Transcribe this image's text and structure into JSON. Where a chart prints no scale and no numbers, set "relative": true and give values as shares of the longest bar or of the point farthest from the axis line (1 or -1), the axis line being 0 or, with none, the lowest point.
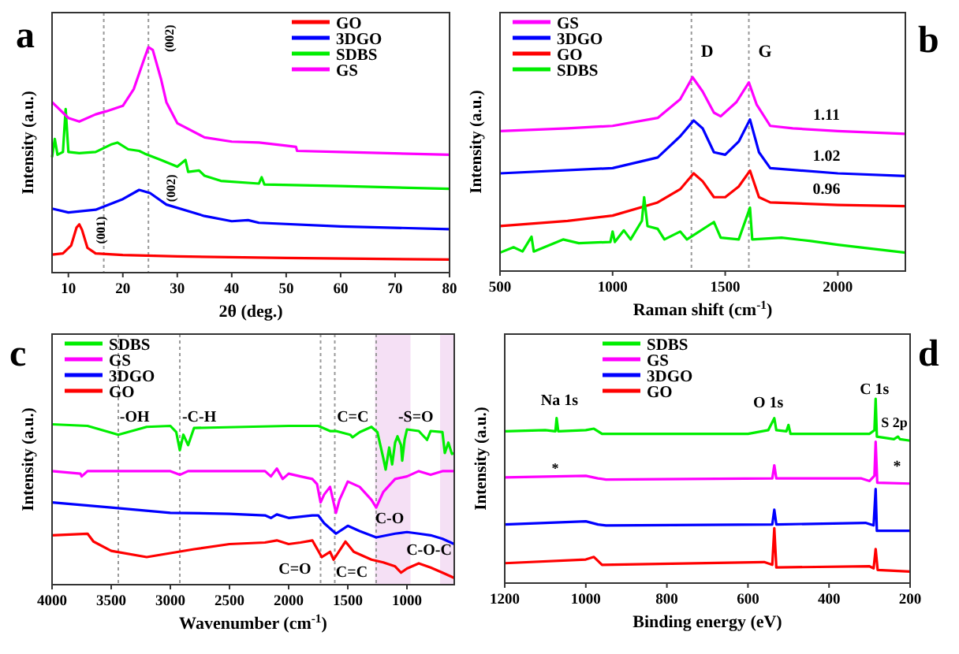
{
  "chart_data": [
    {
      "type": "line",
      "title": "a",
      "xlabel": "2θ (deg.)",
      "ylabel": "Intensity (a.u.)",
      "relative": true,
      "xlim": [
        7,
        80
      ],
      "xticks": [
        10,
        20,
        30,
        40,
        50,
        60,
        70,
        80
      ],
      "tick_labels": "x",
      "grid": false,
      "legend": "top right",
      "marker": "none",
      "line_style": "solid",
      "series": [
        {
          "name": "GO",
          "color": "#ff0000",
          "x": [
            7,
            9,
            10.5,
            11.5,
            12,
            12.5,
            13.5,
            15,
            20,
            30,
            50,
            80
          ],
          "values": [
            0.08,
            0.085,
            0.12,
            0.2,
            0.214,
            0.19,
            0.11,
            0.085,
            0.078,
            0.072,
            0.065,
            0.058
          ]
        },
        {
          "name": "3DGO",
          "color": "#0000ff",
          "x": [
            7,
            10,
            15,
            20,
            23,
            25,
            28,
            35,
            40,
            43,
            45,
            60,
            80
          ],
          "values": [
            0.284,
            0.267,
            0.279,
            0.326,
            0.367,
            0.353,
            0.302,
            0.251,
            0.228,
            0.233,
            0.221,
            0.205,
            0.193
          ]
        },
        {
          "name": "SDBS",
          "color": "#00ee00",
          "x": [
            7,
            7.5,
            8,
            9,
            9.5,
            10,
            12,
            15,
            18,
            19,
            21,
            23,
            24,
            27,
            30,
            31.5,
            32,
            34,
            35,
            38,
            45,
            45.5,
            46,
            60,
            80
          ],
          "values": [
            0.512,
            0.593,
            0.523,
            0.535,
            0.726,
            0.535,
            0.53,
            0.535,
            0.57,
            0.577,
            0.547,
            0.54,
            0.528,
            0.5,
            0.47,
            0.5,
            0.447,
            0.453,
            0.43,
            0.407,
            0.395,
            0.423,
            0.391,
            0.384,
            0.372
          ]
        },
        {
          "name": "GS",
          "color": "#ff00ff",
          "x": [
            7,
            10,
            12,
            15,
            17,
            20,
            22,
            24,
            24.7,
            25.5,
            27,
            28,
            30,
            35,
            40,
            45,
            50,
            51.8,
            52,
            60,
            80
          ],
          "values": [
            0.756,
            0.686,
            0.67,
            0.702,
            0.716,
            0.74,
            0.814,
            0.953,
            1,
            0.988,
            0.86,
            0.756,
            0.663,
            0.6,
            0.581,
            0.577,
            0.563,
            0.558,
            0.54,
            0.535,
            0.523
          ]
        }
      ],
      "ref_lines": [
        {
          "axis": "x",
          "value": 16.5,
          "color": "#999999",
          "line_style": "dotted"
        },
        {
          "axis": "x",
          "value": 24.7,
          "color": "#999999",
          "line_style": "dotted"
        }
      ],
      "annotations": [
        "(002)",
        {
          "text": "(002)",
          "x": 28.7,
          "y": 0.314
        },
        {
          "text": "(001)",
          "x": 15.8,
          "y": 0.128
        }
      ]
    },
    {
      "type": "line",
      "title": "b",
      "xlabel": "Raman shift (cm$^{-1}$)",
      "ylabel": "Intensity (a.u.)",
      "relative": true,
      "xlim": [
        500,
        2300
      ],
      "xticks": [
        500,
        1000,
        1500,
        2000
      ],
      "tick_labels": "x",
      "grid": false,
      "legend": "top left",
      "marker": "none",
      "line_style": "solid",
      "series": [
        {
          "name": "GS",
          "color": "#ff00ff",
          "x": [
            500,
            800,
            1000,
            1200,
            1300,
            1355,
            1400,
            1450,
            1480,
            1550,
            1605,
            1640,
            1700,
            1800,
            2000,
            2300
          ],
          "values": [
            0.722,
            0.736,
            0.749,
            0.79,
            0.886,
            1,
            0.926,
            0.817,
            0.798,
            0.872,
            0.973,
            0.858,
            0.749,
            0.736,
            0.722,
            0.708
          ]
        },
        {
          "name": "3DGO",
          "color": "#0000ff",
          "x": [
            500,
            1000,
            1200,
            1300,
            1360,
            1400,
            1450,
            1500,
            1560,
            1610,
            1650,
            1700,
            2000,
            2300
          ],
          "values": [
            0.504,
            0.531,
            0.586,
            0.695,
            0.777,
            0.736,
            0.613,
            0.6,
            0.668,
            0.782,
            0.613,
            0.531,
            0.504,
            0.49
          ]
        },
        {
          "name": "GO",
          "color": "#ff0000",
          "x": [
            500,
            800,
            1000,
            1200,
            1300,
            1360,
            1400,
            1450,
            1500,
            1560,
            1610,
            1650,
            1700,
            2000,
            2300
          ],
          "values": [
            0.232,
            0.259,
            0.286,
            0.354,
            0.422,
            0.504,
            0.463,
            0.381,
            0.381,
            0.436,
            0.518,
            0.381,
            0.354,
            0.341,
            0.335
          ]
        },
        {
          "name": "SDBS",
          "color": "#00ee00",
          "x": [
            500,
            560,
            600,
            640,
            650,
            780,
            850,
            990,
            1000,
            1010,
            1050,
            1080,
            1130,
            1140,
            1155,
            1200,
            1230,
            1300,
            1330,
            1450,
            1480,
            1560,
            1610,
            1620,
            1750,
            1880,
            2000,
            2300
          ],
          "values": [
            0.095,
            0.123,
            0.101,
            0.177,
            0.101,
            0.163,
            0.144,
            0.15,
            0.204,
            0.15,
            0.21,
            0.163,
            0.259,
            0.381,
            0.232,
            0.218,
            0.163,
            0.204,
            0.163,
            0.253,
            0.172,
            0.163,
            0.327,
            0.163,
            0.172,
            0.155,
            0.136,
            0.095
          ]
        }
      ],
      "ref_lines": [
        {
          "axis": "x",
          "value": 1350,
          "label": "D",
          "color": "#999999",
          "line_style": "dotted"
        },
        {
          "axis": "x",
          "value": 1605,
          "label": "G",
          "color": "#999999",
          "line_style": "dotted"
        }
      ],
      "annotations": [
        "1.11",
        "1.02",
        "0.96"
      ]
    },
    {
      "type": "line",
      "title": "c",
      "xlabel": "Wavenumber (cm$^{-1}$)",
      "ylabel": "Intensity (a.u.)",
      "relative": true,
      "xlim": [
        4000,
        600
      ],
      "xticks": [
        4000,
        3500,
        3000,
        2500,
        2000,
        1500,
        1000
      ],
      "tick_labels": "x",
      "grid": false,
      "legend": "top left",
      "marker": "none",
      "line_style": "solid",
      "series": [
        {
          "name": "SDBS",
          "color": "#00ee00",
          "x": [
            4000,
            3700,
            3440,
            3200,
            3000,
            2950,
            2920,
            2890,
            2850,
            2800,
            2000,
            1750,
            1650,
            1600,
            1480,
            1460,
            1400,
            1300,
            1250,
            1200,
            1180,
            1150,
            1125,
            1100,
            1080,
            1050,
            1040,
            1020,
            1000,
            900,
            830,
            800,
            700,
            680,
            650,
            620,
            600
          ],
          "values": [
            1,
            0.99,
            0.935,
            0.984,
            0.99,
            0.951,
            0.838,
            0.935,
            0.87,
            0.977,
            0.99,
            0.99,
            0.958,
            0.958,
            0.935,
            0.919,
            0.951,
            0.984,
            0.951,
            0.789,
            0.718,
            0.855,
            0.75,
            0.886,
            0.925,
            0.87,
            0.773,
            0.903,
            0.968,
            0.958,
            0.903,
            0.958,
            0.951,
            0.821,
            0.886,
            0.815,
            0.821
          ]
        },
        {
          "name": "GS",
          "color": "#ff00ff",
          "x": [
            4000,
            3760,
            3750,
            3700,
            3000,
            2920,
            2850,
            2200,
            2150,
            2100,
            2050,
            2000,
            1900,
            1800,
            1760,
            1730,
            1700,
            1650,
            1600,
            1570,
            1500,
            1400,
            1300,
            1260,
            1200,
            1100,
            1000,
            900,
            800,
            700,
            600
          ],
          "values": [
            0.708,
            0.692,
            0.675,
            0.708,
            0.708,
            0.685,
            0.708,
            0.708,
            0.675,
            0.724,
            0.659,
            0.692,
            0.675,
            0.659,
            0.627,
            0.513,
            0.562,
            0.61,
            0.448,
            0.529,
            0.643,
            0.61,
            0.529,
            0.481,
            0.578,
            0.659,
            0.675,
            0.708,
            0.685,
            0.708,
            0.708
          ]
        },
        {
          "name": "3DGO",
          "color": "#0000ff",
          "x": [
            4000,
            3500,
            3000,
            2500,
            2200,
            2150,
            2100,
            2000,
            1800,
            1750,
            1700,
            1600,
            1500,
            1400,
            1260,
            1100,
            1000,
            900,
            800,
            700,
            600
          ],
          "values": [
            0.513,
            0.481,
            0.448,
            0.442,
            0.432,
            0.416,
            0.438,
            0.416,
            0.432,
            0.432,
            0.383,
            0.318,
            0.367,
            0.334,
            0.295,
            0.318,
            0.328,
            0.318,
            0.308,
            0.286,
            0.253
          ]
        },
        {
          "name": "GO",
          "color": "#ff0000",
          "x": [
            4000,
            3700,
            3650,
            3500,
            3200,
            2800,
            2500,
            2200,
            2100,
            2000,
            1900,
            1800,
            1720,
            1650,
            1620,
            1520,
            1450,
            1300,
            1200,
            1100,
            1050,
            1000,
            900,
            800,
            700,
            600
          ],
          "values": [
            0.308,
            0.318,
            0.269,
            0.211,
            0.172,
            0.221,
            0.253,
            0.263,
            0.276,
            0.253,
            0.263,
            0.276,
            0.172,
            0.205,
            0.156,
            0.269,
            0.205,
            0.156,
            0.139,
            0.114,
            0.075,
            0.101,
            0.133,
            0.107,
            0.075,
            0.042
          ]
        }
      ],
      "ref_lines": [
        {
          "axis": "x",
          "value": 3440,
          "color": "#999999",
          "line_style": "dotted"
        },
        {
          "axis": "x",
          "value": 2920,
          "color": "#999999",
          "line_style": "dotted"
        },
        {
          "axis": "x",
          "value": 1730,
          "color": "#999999",
          "line_style": "dotted"
        },
        {
          "axis": "x",
          "value": 1610,
          "color": "#999999",
          "line_style": "dotted"
        },
        {
          "axis": "x",
          "value": 1260,
          "color": "#999999",
          "line_style": "dotted"
        }
      ],
      "bands": [
        {
          "axis": "x",
          "from": 1270,
          "to": 970,
          "color": "#f5e0f5"
        },
        {
          "axis": "x",
          "from": 720,
          "to": 600,
          "color": "#f5e0f5"
        }
      ],
      "annotations": [
        {
          "text": "-OH",
          "x": 3302,
          "y": 0.99
        },
        {
          "text": "-C-H",
          "x": 2756,
          "y": 0.99
        },
        {
          "text": "C=C",
          "x": 1458,
          "y": 0.99
        },
        {
          "text": "-S=O",
          "x": 925,
          "y": 0.99
        },
        "C-O",
        "C=O",
        "C=C",
        {
          "text": "C-O-C",
          "x": 813,
          "y": 0.156
        }
      ]
    },
    {
      "type": "line",
      "title": "d",
      "xlabel": "Binding energy (eV)",
      "ylabel": "Intensity (a.u.)",
      "relative": true,
      "xlim": [
        1200,
        200
      ],
      "xticks": [
        1200,
        1000,
        800,
        600,
        400,
        200
      ],
      "tick_labels": "x",
      "grid": false,
      "legend": "top left",
      "marker": "none",
      "line_style": "solid",
      "series": [
        {
          "name": "SDBS",
          "color": "#00ee00",
          "x": [
            1200,
            1100,
            1075,
            1072,
            1068,
            1000,
            980,
            960,
            600,
            550,
            535,
            530,
            505,
            500,
            495,
            300,
            288,
            285,
            282,
            240,
            230,
            225,
            200
          ],
          "values": [
            0.824,
            0.83,
            0.824,
            0.895,
            0.824,
            0.83,
            0.838,
            0.81,
            0.81,
            0.83,
            0.895,
            0.83,
            0.824,
            0.858,
            0.81,
            0.81,
            0.83,
            1,
            0.795,
            0.781,
            0.795,
            0.781,
            0.773
          ]
        },
        {
          "name": "GS",
          "color": "#ff00ff",
          "x": [
            1200,
            1000,
            970,
            950,
            540,
            535,
            530,
            320,
            300,
            288,
            285,
            281,
            200
          ],
          "values": [
            0.574,
            0.582,
            0.568,
            0.562,
            0.568,
            0.639,
            0.568,
            0.568,
            0.554,
            0.582,
            0.767,
            0.545,
            0.54
          ]
        },
        {
          "name": "3DGO",
          "color": "#0000ff",
          "x": [
            1200,
            1000,
            970,
            950,
            540,
            535,
            530,
            310,
            290,
            285,
            282,
            200
          ],
          "values": [
            0.318,
            0.335,
            0.318,
            0.313,
            0.318,
            0.398,
            0.318,
            0.327,
            0.313,
            0.511,
            0.284,
            0.284
          ]
        },
        {
          "name": "GO",
          "color": "#ff0000",
          "x": [
            1200,
            1000,
            980,
            960,
            560,
            540,
            535,
            530,
            300,
            290,
            285,
            280,
            200
          ],
          "values": [
            0.108,
            0.128,
            0.142,
            0.099,
            0.114,
            0.099,
            0.298,
            0.085,
            0.091,
            0.08,
            0.185,
            0.071,
            0.0625
          ]
        }
      ],
      "annotations": [
        {
          "text": "Na 1s",
          "x": 1065,
          "y": 0.94
        },
        {
          "text": "O 1s",
          "x": 550,
          "y": 0.93
        },
        {
          "text": "C 1s",
          "x": 288,
          "y": 1
        },
        "S 2p",
        "*",
        {
          "text": "*",
          "x": 232,
          "y": 0.58
        }
      ]
    }
  ]
}
